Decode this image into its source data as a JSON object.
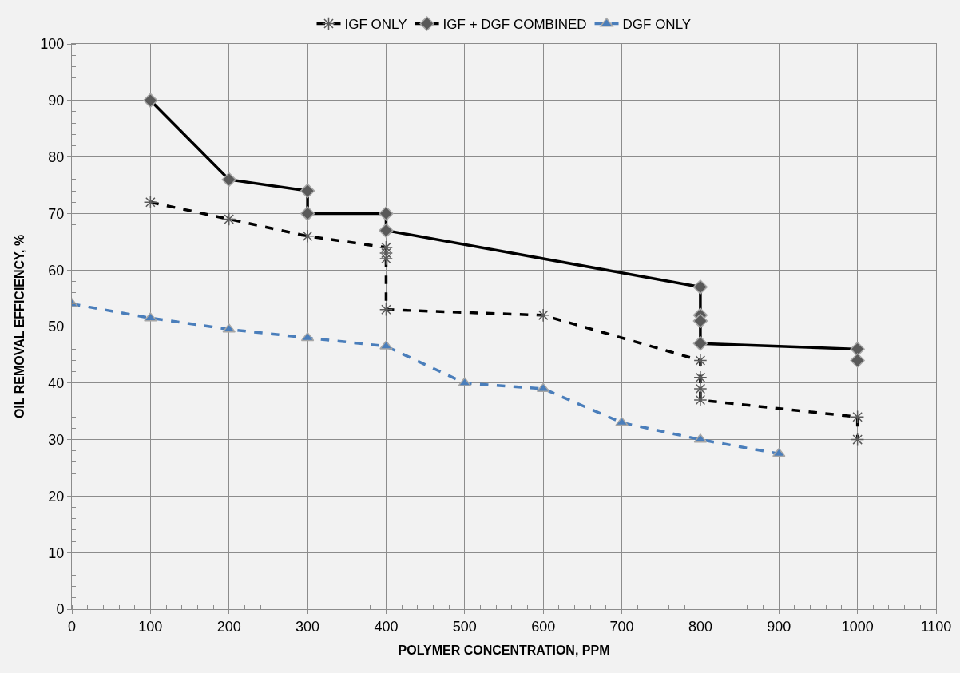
{
  "chart_data": {
    "type": "line",
    "xlabel": "POLYMER CONCENTRATION, PPM",
    "ylabel": "OIL REMOVAL EFFICIENCY, %",
    "series": [
      {
        "name": "IGF ONLY",
        "color": "#000000",
        "marker": "cross",
        "line_style": "dashed",
        "x": [
          100,
          200,
          300,
          400,
          400,
          400,
          400,
          600,
          800,
          800,
          800,
          800,
          1000,
          1000
        ],
        "values": [
          72,
          69,
          66,
          64,
          63,
          62,
          53,
          52,
          44,
          41,
          39,
          37,
          34,
          30
        ]
      },
      {
        "name": "IGF + DGF COMBINED",
        "color": "#000000",
        "marker": "diamond",
        "line_style": "solid",
        "x": [
          100,
          200,
          300,
          300,
          400,
          400,
          800,
          800,
          800,
          800,
          1000,
          1000
        ],
        "values": [
          90,
          76,
          74,
          70,
          70,
          67,
          57,
          52,
          51,
          47,
          46,
          44
        ]
      },
      {
        "name": "DGF ONLY",
        "color": "#4a7ebb",
        "marker": "triangle",
        "line_style": "dashed",
        "x": [
          0,
          100,
          200,
          300,
          400,
          500,
          600,
          700,
          800,
          900
        ],
        "values": [
          54,
          51.5,
          49.5,
          48,
          46.5,
          40,
          39,
          33,
          30,
          27.5
        ]
      }
    ],
    "xlim": [
      0,
      1100
    ],
    "xticks": [
      0,
      100,
      200,
      300,
      400,
      500,
      600,
      700,
      800,
      900,
      1000,
      1100
    ],
    "ylim": [
      0,
      100
    ],
    "yticks": [
      0,
      10,
      20,
      30,
      40,
      50,
      60,
      70,
      80,
      90,
      100
    ],
    "grid": true,
    "legend": "top"
  }
}
